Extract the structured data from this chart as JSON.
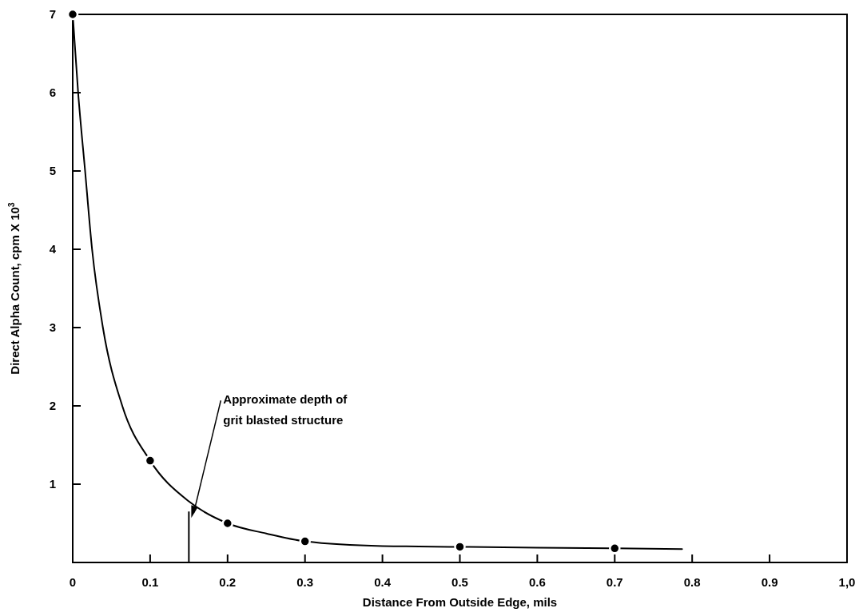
{
  "chart_data": {
    "type": "scatter",
    "xlabel": "Distance From Outside Edge, mils",
    "ylabel": "Direct Alpha Count, cpm X 10$^{3}$",
    "xlim": [
      0,
      1
    ],
    "xticks": [
      0,
      0.1,
      0.2,
      0.3,
      0.4,
      0.5,
      0.6,
      0.7,
      0.8,
      0.9,
      {
        "value": 1,
        "label": "1,0"
      }
    ],
    "ylim": [
      0,
      7
    ],
    "yticks": [
      1,
      2,
      3,
      4,
      5,
      6,
      7
    ],
    "grid": false,
    "marker": "circle",
    "series": [
      {
        "type": "line",
        "color": "#000000",
        "marker": "none",
        "line_style": "solid",
        "x": [
          0,
          0.007,
          0.016,
          0.025,
          0.039,
          0.064,
          0.1,
          0.15,
          0.2,
          0.25,
          0.3,
          0.4,
          0.5,
          0.6,
          0.7,
          0.787
        ],
        "values": [
          7,
          6,
          5,
          4,
          3,
          2,
          1.3,
          0.78,
          0.5,
          0.37,
          0.27,
          0.21,
          0.2,
          0.19,
          0.18,
          0.17
        ]
      },
      {
        "color": "#000000",
        "x": [
          0,
          0.1,
          0.2,
          0.3,
          0.5,
          0.7
        ],
        "values": [
          7,
          1.3,
          0.5,
          0.27,
          0.2,
          0.18
        ]
      }
    ],
    "ref_lines": [
      {
        "axis": "x",
        "value": 0.15,
        "label": "Approximate depth of\ngrit blasted structure"
      }
    ]
  }
}
